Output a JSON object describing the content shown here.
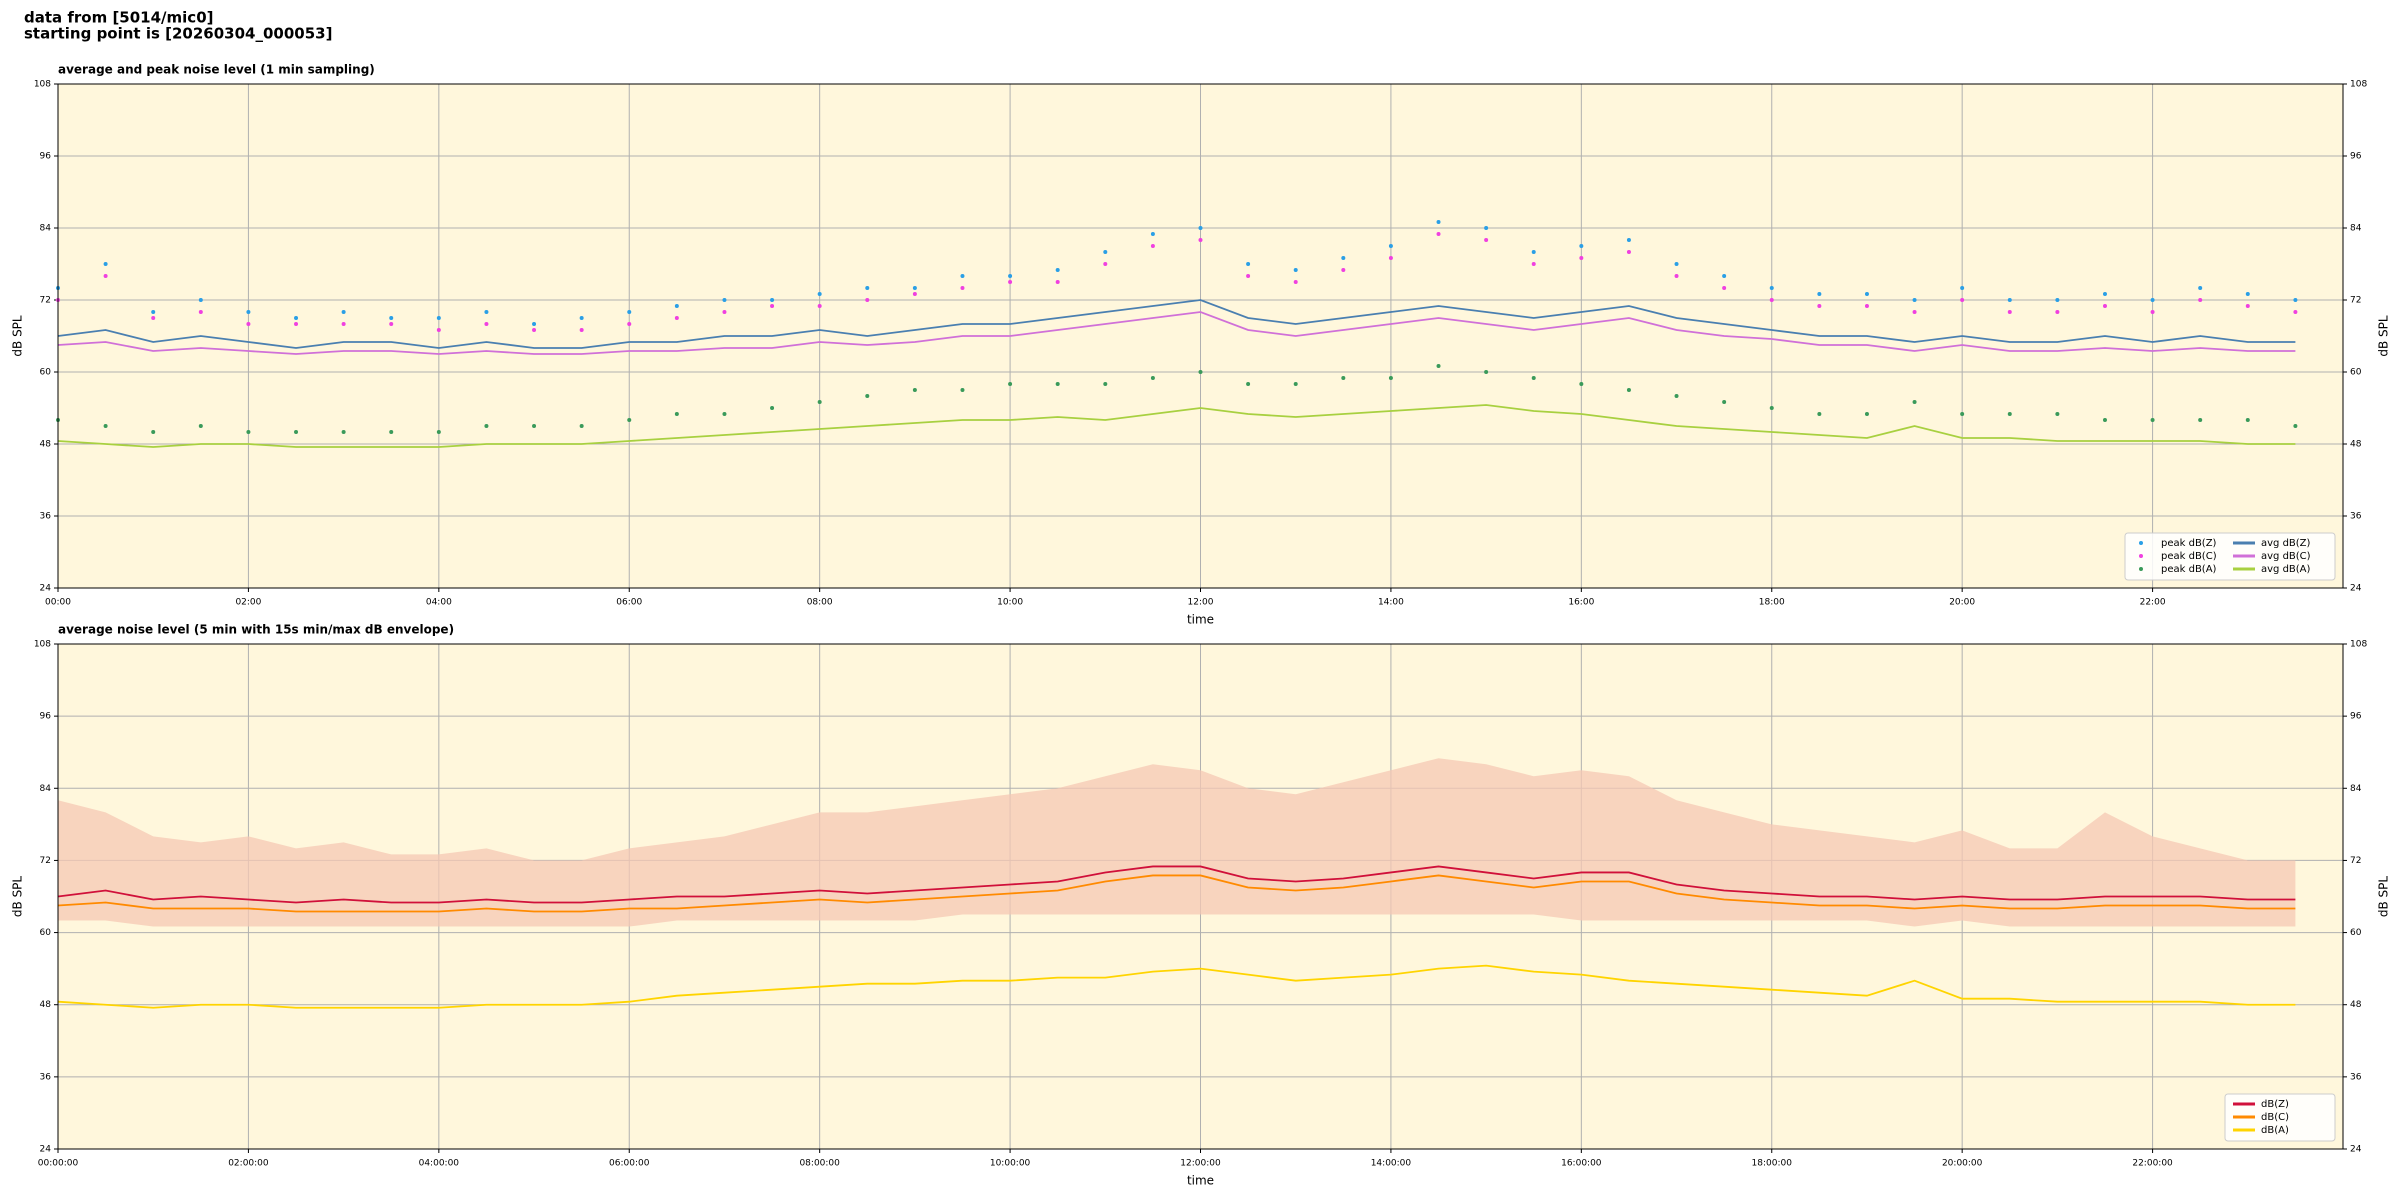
{
  "header": {
    "line1": "data from [5014/mic0]",
    "line2": "starting point is [20260304_000053]"
  },
  "chart_data": [
    {
      "type": "line",
      "title": "average and peak noise level (1 min sampling)",
      "x_label": "time",
      "y_label": "dB SPL",
      "x": [
        0,
        0.5,
        1,
        1.5,
        2,
        2.5,
        3,
        3.5,
        4,
        4.5,
        5,
        5.5,
        6,
        6.5,
        7,
        7.5,
        8,
        8.5,
        9,
        9.5,
        10,
        10.5,
        11,
        11.5,
        12,
        12.5,
        13,
        13.5,
        14,
        14.5,
        15,
        15.5,
        16,
        16.5,
        17,
        17.5,
        18,
        18.5,
        19,
        19.5,
        20,
        20.5,
        21,
        21.5,
        22,
        22.5,
        23,
        23.5
      ],
      "xlim": [
        0,
        24
      ],
      "xticks": [
        {
          "value": 0,
          "label": "00:00"
        },
        {
          "value": 2,
          "label": "02:00"
        },
        {
          "value": 4,
          "label": "04:00"
        },
        {
          "value": 6,
          "label": "06:00"
        },
        {
          "value": 8,
          "label": "08:00"
        },
        {
          "value": 10,
          "label": "10:00"
        },
        {
          "value": 12,
          "label": "12:00"
        },
        {
          "value": 14,
          "label": "14:00"
        },
        {
          "value": 16,
          "label": "16:00"
        },
        {
          "value": 18,
          "label": "18:00"
        },
        {
          "value": 20,
          "label": "20:00"
        },
        {
          "value": 22,
          "label": "22:00"
        }
      ],
      "ylim": [
        24,
        108
      ],
      "yticks": [
        24,
        36,
        48,
        60,
        72,
        84,
        96,
        108
      ],
      "grid": true,
      "legend": "lower right",
      "series": [
        {
          "name": "peak dB(Z)",
          "kind": "scatter",
          "color": "#2a9fe6",
          "values": [
            74,
            78,
            70,
            72,
            70,
            69,
            70,
            69,
            69,
            70,
            68,
            69,
            70,
            71,
            72,
            72,
            73,
            74,
            74,
            76,
            76,
            77,
            80,
            83,
            84,
            78,
            77,
            79,
            81,
            85,
            84,
            80,
            81,
            82,
            78,
            76,
            74,
            73,
            73,
            72,
            74,
            72,
            72,
            73,
            72,
            74,
            73,
            72
          ]
        },
        {
          "name": "peak dB(C)",
          "kind": "scatter",
          "color": "#f040e0",
          "values": [
            72,
            76,
            69,
            70,
            68,
            68,
            68,
            68,
            67,
            68,
            67,
            67,
            68,
            69,
            70,
            71,
            71,
            72,
            73,
            74,
            75,
            75,
            78,
            81,
            82,
            76,
            75,
            77,
            79,
            83,
            82,
            78,
            79,
            80,
            76,
            74,
            72,
            71,
            71,
            70,
            72,
            70,
            70,
            71,
            70,
            72,
            71,
            70
          ]
        },
        {
          "name": "peak dB(A)",
          "kind": "scatter",
          "color": "#3a9a5a",
          "values": [
            52,
            51,
            50,
            51,
            50,
            50,
            50,
            50,
            50,
            51,
            51,
            51,
            52,
            53,
            53,
            54,
            55,
            56,
            57,
            57,
            58,
            58,
            58,
            59,
            60,
            58,
            58,
            59,
            59,
            61,
            60,
            59,
            58,
            57,
            56,
            55,
            54,
            53,
            53,
            55,
            53,
            53,
            53,
            52,
            52,
            52,
            52,
            51
          ]
        },
        {
          "name": "avg dB(Z)",
          "kind": "line",
          "color": "#4a7fb0",
          "values": [
            66,
            67,
            65,
            66,
            65,
            64,
            65,
            65,
            64,
            65,
            64,
            64,
            65,
            65,
            66,
            66,
            67,
            66,
            67,
            68,
            68,
            69,
            70,
            71,
            72,
            69,
            68,
            69,
            70,
            71,
            70,
            69,
            70,
            71,
            69,
            68,
            67,
            66,
            66,
            65,
            66,
            65,
            65,
            66,
            65,
            66,
            65,
            65
          ]
        },
        {
          "name": "avg dB(C)",
          "kind": "line",
          "color": "#d070d8",
          "values": [
            64.5,
            65,
            63.5,
            64,
            63.5,
            63,
            63.5,
            63.5,
            63,
            63.5,
            63,
            63,
            63.5,
            63.5,
            64,
            64,
            65,
            64.5,
            65,
            66,
            66,
            67,
            68,
            69,
            70,
            67,
            66,
            67,
            68,
            69,
            68,
            67,
            68,
            69,
            67,
            66,
            65.5,
            64.5,
            64.5,
            63.5,
            64.5,
            63.5,
            63.5,
            64,
            63.5,
            64,
            63.5,
            63.5
          ]
        },
        {
          "name": "avg dB(A)",
          "kind": "line",
          "color": "#a8d040",
          "values": [
            48.5,
            48,
            47.5,
            48,
            48,
            47.5,
            47.5,
            47.5,
            47.5,
            48,
            48,
            48,
            48.5,
            49,
            49.5,
            50,
            50.5,
            51,
            51.5,
            52,
            52,
            52.5,
            52,
            53,
            54,
            53,
            52.5,
            53,
            53.5,
            54,
            54.5,
            53.5,
            53,
            52,
            51,
            50.5,
            50,
            49.5,
            49,
            51,
            49,
            49,
            48.5,
            48.5,
            48.5,
            48.5,
            48,
            48
          ]
        }
      ]
    },
    {
      "type": "line",
      "title": "average noise level (5 min with 15s min/max dB envelope)",
      "x_label": "time",
      "y_label": "dB SPL",
      "x": [
        0,
        0.5,
        1,
        1.5,
        2,
        2.5,
        3,
        3.5,
        4,
        4.5,
        5,
        5.5,
        6,
        6.5,
        7,
        7.5,
        8,
        8.5,
        9,
        9.5,
        10,
        10.5,
        11,
        11.5,
        12,
        12.5,
        13,
        13.5,
        14,
        14.5,
        15,
        15.5,
        16,
        16.5,
        17,
        17.5,
        18,
        18.5,
        19,
        19.5,
        20,
        20.5,
        21,
        21.5,
        22,
        22.5,
        23,
        23.5
      ],
      "xlim": [
        0,
        24
      ],
      "xticks": [
        {
          "value": 0,
          "label": "00:00:00"
        },
        {
          "value": 2,
          "label": "02:00:00"
        },
        {
          "value": 4,
          "label": "04:00:00"
        },
        {
          "value": 6,
          "label": "06:00:00"
        },
        {
          "value": 8,
          "label": "08:00:00"
        },
        {
          "value": 10,
          "label": "10:00:00"
        },
        {
          "value": 12,
          "label": "12:00:00"
        },
        {
          "value": 14,
          "label": "14:00:00"
        },
        {
          "value": 16,
          "label": "16:00:00"
        },
        {
          "value": 18,
          "label": "18:00:00"
        },
        {
          "value": 20,
          "label": "20:00:00"
        },
        {
          "value": 22,
          "label": "22:00:00"
        }
      ],
      "ylim": [
        24,
        108
      ],
      "yticks": [
        24,
        36,
        48,
        60,
        72,
        84,
        96,
        108
      ],
      "grid": true,
      "legend": "lower right",
      "envelope": {
        "color": "#f6c8b4",
        "low": [
          62,
          62,
          61,
          61,
          61,
          61,
          61,
          61,
          61,
          61,
          61,
          61,
          61,
          62,
          62,
          62,
          62,
          62,
          62,
          63,
          63,
          63,
          63,
          63,
          63,
          63,
          63,
          63,
          63,
          63,
          63,
          63,
          62,
          62,
          62,
          62,
          62,
          62,
          62,
          61,
          62,
          61,
          61,
          61,
          61,
          61,
          61,
          61
        ],
        "high": [
          82,
          80,
          76,
          75,
          76,
          74,
          75,
          73,
          73,
          74,
          72,
          72,
          74,
          75,
          76,
          78,
          80,
          80,
          81,
          82,
          83,
          84,
          86,
          88,
          87,
          84,
          83,
          85,
          87,
          89,
          88,
          86,
          87,
          86,
          82,
          80,
          78,
          77,
          76,
          75,
          77,
          74,
          74,
          80,
          76,
          74,
          72,
          72
        ]
      },
      "series": [
        {
          "name": "dB(Z)",
          "kind": "line",
          "color": "#d0103a",
          "values": [
            66,
            67,
            65.5,
            66,
            65.5,
            65,
            65.5,
            65,
            65,
            65.5,
            65,
            65,
            65.5,
            66,
            66,
            66.5,
            67,
            66.5,
            67,
            67.5,
            68,
            68.5,
            70,
            71,
            71,
            69,
            68.5,
            69,
            70,
            71,
            70,
            69,
            70,
            70,
            68,
            67,
            66.5,
            66,
            66,
            65.5,
            66,
            65.5,
            65.5,
            66,
            66,
            66,
            65.5,
            65.5
          ]
        },
        {
          "name": "dB(C)",
          "kind": "line",
          "color": "#ff8a00",
          "values": [
            64.5,
            65,
            64,
            64,
            64,
            63.5,
            63.5,
            63.5,
            63.5,
            64,
            63.5,
            63.5,
            64,
            64,
            64.5,
            65,
            65.5,
            65,
            65.5,
            66,
            66.5,
            67,
            68.5,
            69.5,
            69.5,
            67.5,
            67,
            67.5,
            68.5,
            69.5,
            68.5,
            67.5,
            68.5,
            68.5,
            66.5,
            65.5,
            65,
            64.5,
            64.5,
            64,
            64.5,
            64,
            64,
            64.5,
            64.5,
            64.5,
            64,
            64
          ]
        },
        {
          "name": "dB(A)",
          "kind": "line",
          "color": "#ffd400",
          "values": [
            48.5,
            48,
            47.5,
            48,
            48,
            47.5,
            47.5,
            47.5,
            47.5,
            48,
            48,
            48,
            48.5,
            49.5,
            50,
            50.5,
            51,
            51.5,
            51.5,
            52,
            52,
            52.5,
            52.5,
            53.5,
            54,
            53,
            52,
            52.5,
            53,
            54,
            54.5,
            53.5,
            53,
            52,
            51.5,
            51,
            50.5,
            50,
            49.5,
            52,
            49,
            49,
            48.5,
            48.5,
            48.5,
            48.5,
            48,
            48
          ]
        }
      ]
    }
  ]
}
